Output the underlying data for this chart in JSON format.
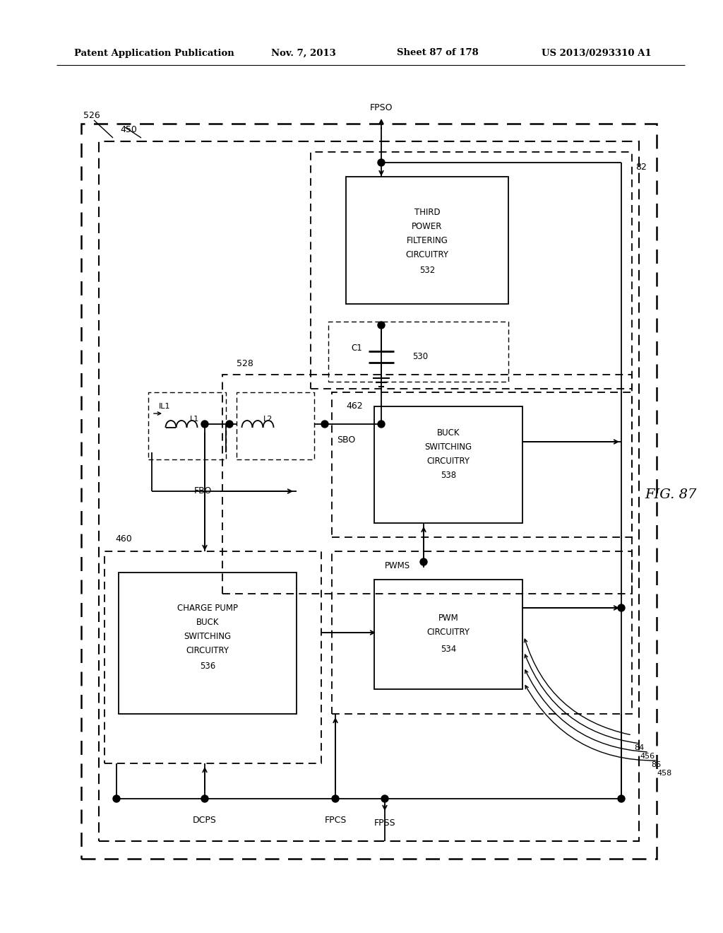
{
  "bg_color": "#ffffff",
  "header_left": "Patent Application Publication",
  "header_mid": "Nov. 7, 2013",
  "header_sheet": "Sheet 87 of 178",
  "header_right": "US 2013/0293310 A1",
  "fig_label": "FIG. 87"
}
